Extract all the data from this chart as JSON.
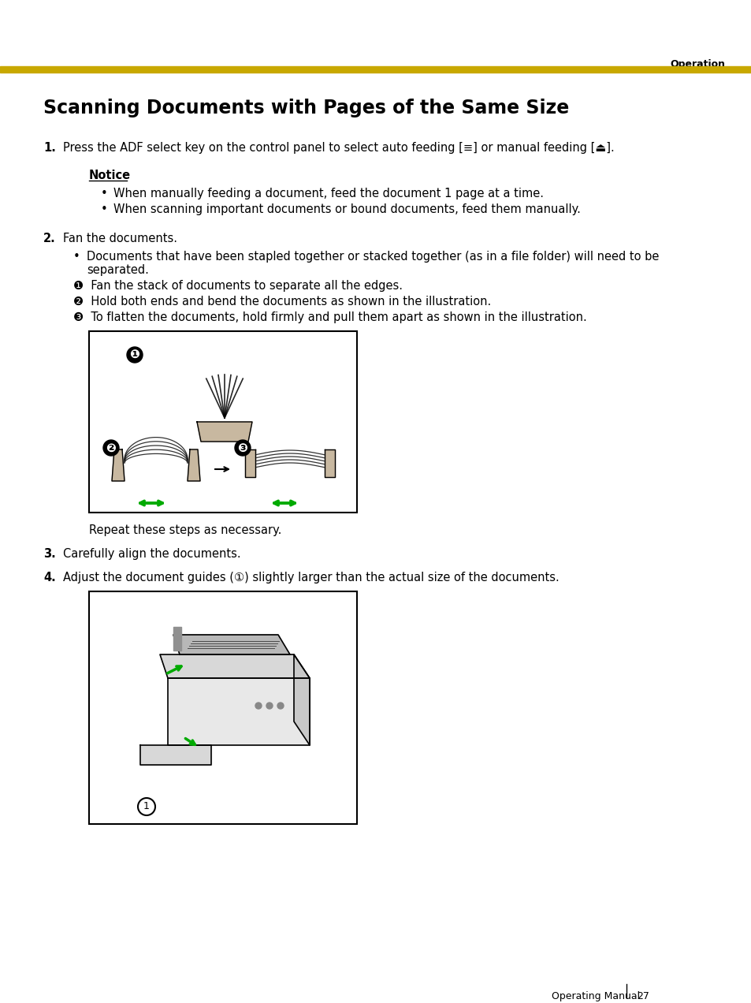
{
  "bg_color": "#ffffff",
  "header_bar_color": "#C8A800",
  "header_text": "Operation",
  "title": "Scanning Documents with Pages of the Same Size",
  "step1_label": "1.",
  "step1_text": "Press the ADF select key on the control panel to select auto feeding [≡] or manual feeding [⏏].",
  "notice_title": "Notice",
  "notice_bullets": [
    "When manually feeding a document, feed the document 1 page at a time.",
    "When scanning important documents or bound documents, feed them manually."
  ],
  "step2_label": "2.",
  "step2_text": "Fan the documents.",
  "step2_sub_bullet": "Documents that have been stapled together or stacked together (as in a file folder) will need to be\nseparated.",
  "step2_circle1": "❶  Fan the stack of documents to separate all the edges.",
  "step2_circle2": "❷  Hold both ends and bend the documents as shown in the illustration.",
  "step2_circle3": "❸  To flatten the documents, hold firmly and pull them apart as shown in the illustration.",
  "repeat_text": "Repeat these steps as necessary.",
  "step3_label": "3.",
  "step3_text": "Carefully align the documents.",
  "step4_label": "4.",
  "step4_text": "Adjust the document guides (①) slightly larger than the actual size of the documents.",
  "footer_text": "Operating Manual",
  "footer_page": "27"
}
